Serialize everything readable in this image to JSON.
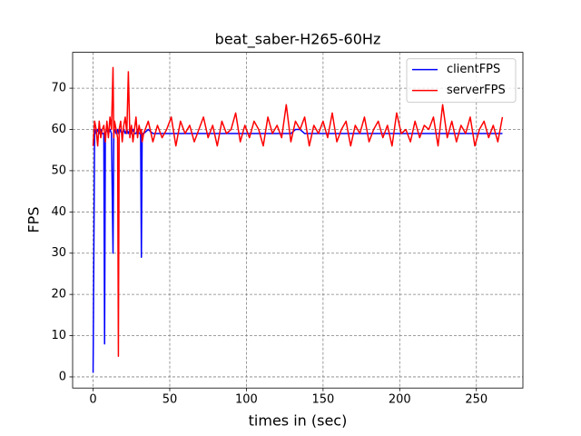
{
  "chart_data": {
    "type": "line",
    "title": "beat_saber-H265-60Hz",
    "x_label": "times in (sec)",
    "y_label": "FPS",
    "x": [
      0,
      1,
      2,
      3,
      4,
      5,
      6,
      7,
      7.5,
      8,
      9,
      10,
      11,
      12,
      13,
      13.5,
      14,
      15,
      16,
      16.5,
      17,
      18,
      19,
      20,
      21,
      22,
      23,
      24,
      25,
      26,
      27,
      28,
      29,
      30,
      31,
      31.5,
      32,
      33,
      36,
      39,
      42,
      45,
      48,
      51,
      54,
      57,
      60,
      63,
      66,
      69,
      72,
      75,
      78,
      81,
      84,
      87,
      90,
      93,
      96,
      99,
      102,
      105,
      108,
      111,
      114,
      117,
      120,
      123,
      126,
      129,
      132,
      135,
      138,
      141,
      144,
      147,
      150,
      153,
      156,
      159,
      162,
      165,
      168,
      171,
      174,
      177,
      180,
      183,
      186,
      189,
      192,
      195,
      198,
      201,
      204,
      207,
      210,
      213,
      216,
      219,
      222,
      225,
      228,
      231,
      234,
      237,
      240,
      243,
      246,
      249,
      252,
      255,
      258,
      261,
      264,
      267
    ],
    "series": [
      {
        "name": "clientFPS",
        "color": "#0000ff",
        "values": [
          1,
          60,
          59,
          60,
          59,
          60,
          59,
          59,
          8,
          59,
          60,
          59,
          60,
          59,
          30,
          59,
          60,
          59,
          60,
          59,
          59,
          60,
          59,
          60,
          59,
          60,
          59,
          60,
          59,
          60,
          59,
          59,
          60,
          59,
          59,
          29,
          59,
          59,
          60,
          59,
          59,
          59,
          59,
          59,
          59,
          59,
          59,
          59,
          59,
          59,
          59,
          59,
          59,
          59,
          59,
          59,
          59,
          59,
          59,
          59,
          59,
          59,
          59,
          59,
          59,
          59,
          59,
          59,
          59,
          59,
          60,
          60,
          59,
          59,
          59,
          59,
          59,
          59,
          59,
          59,
          59,
          59,
          59,
          59,
          59,
          59,
          59,
          59,
          59,
          59,
          59,
          59,
          59,
          59,
          59,
          59,
          59,
          59,
          59,
          59,
          59,
          59,
          59,
          59,
          59,
          59,
          59,
          59,
          59,
          59,
          59,
          59,
          59,
          59,
          59,
          59
        ]
      },
      {
        "name": "serverFPS",
        "color": "#ff0000",
        "values": [
          56,
          62,
          60,
          56,
          62,
          58,
          60,
          61,
          59,
          57,
          62,
          58,
          63,
          60,
          75,
          58,
          62,
          60,
          58,
          5,
          60,
          62,
          57,
          61,
          63,
          59,
          74,
          58,
          61,
          57,
          60,
          63,
          58,
          61,
          59,
          60,
          57,
          59,
          62,
          57,
          61,
          58,
          60,
          63,
          56,
          62,
          59,
          61,
          57,
          60,
          63,
          58,
          61,
          56,
          62,
          59,
          60,
          64,
          57,
          61,
          58,
          62,
          60,
          56,
          63,
          59,
          61,
          58,
          66,
          57,
          62,
          60,
          63,
          56,
          61,
          59,
          62,
          58,
          64,
          57,
          60,
          62,
          56,
          61,
          59,
          63,
          57,
          60,
          62,
          58,
          61,
          56,
          64,
          59,
          60,
          57,
          62,
          58,
          61,
          60,
          63,
          56,
          66,
          58,
          62,
          57,
          61,
          59,
          63,
          56,
          60,
          62,
          58,
          61,
          57,
          63
        ]
      }
    ],
    "xlim": [
      -13.35,
      280.35
    ],
    "ylim": [
      -2.7,
      78.7
    ],
    "xticks": [
      0,
      50,
      100,
      150,
      200,
      250
    ],
    "yticks": [
      0,
      10,
      20,
      30,
      40,
      50,
      60,
      70
    ],
    "grid": true,
    "legend": "upper right"
  }
}
